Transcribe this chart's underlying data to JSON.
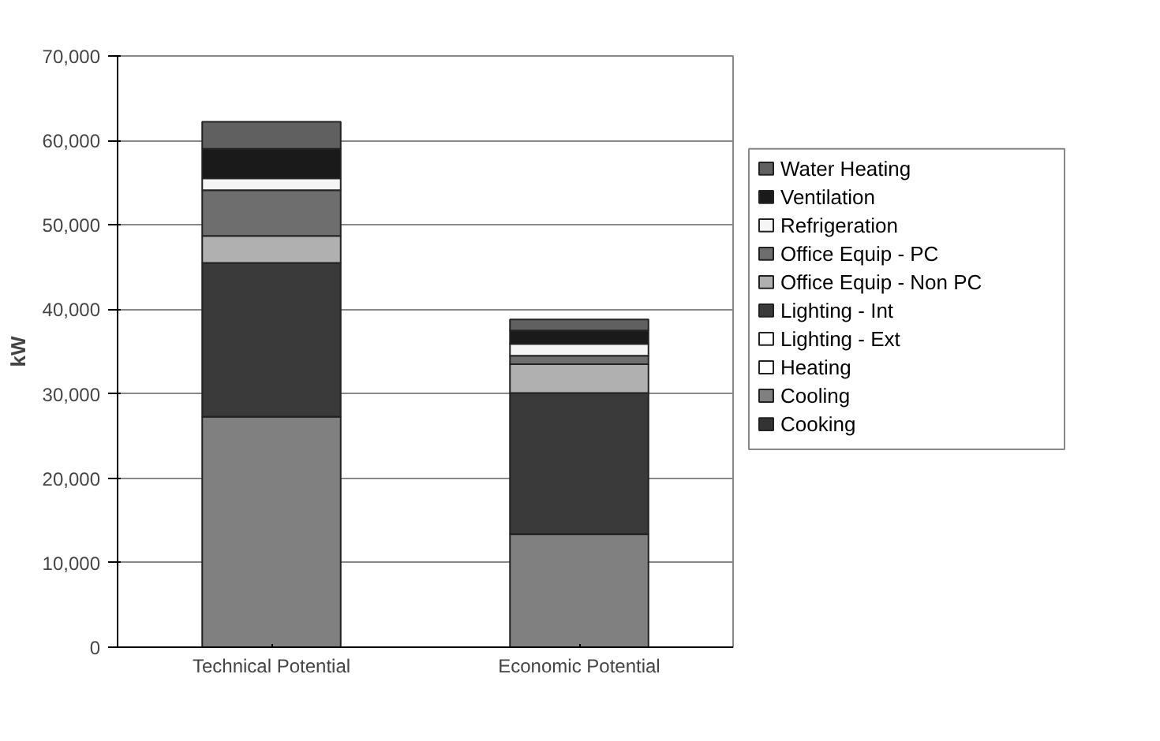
{
  "chart_data": {
    "type": "bar",
    "stacked": true,
    "ylabel": "kW",
    "categories": [
      "Technical Potential",
      "Economic Potential"
    ],
    "series": [
      {
        "name": "Cooking",
        "color": "#333333",
        "values": [
          0,
          0
        ]
      },
      {
        "name": "Cooling",
        "color": "#808080",
        "values": [
          27300,
          13400
        ]
      },
      {
        "name": "Heating",
        "color": "#ffffff",
        "values": [
          0,
          0
        ]
      },
      {
        "name": "Lighting - Ext",
        "color": "#ffffff",
        "values": [
          0,
          0
        ]
      },
      {
        "name": "Lighting - Int",
        "color": "#3a3a3a",
        "values": [
          18200,
          16700
        ]
      },
      {
        "name": "Office Equip - Non PC",
        "color": "#b0b0b0",
        "values": [
          3200,
          3400
        ]
      },
      {
        "name": "Office Equip - PC",
        "color": "#6e6e6e",
        "values": [
          5400,
          1000
        ]
      },
      {
        "name": "Refrigeration",
        "color": "#f5f5f5",
        "values": [
          1400,
          1400
        ]
      },
      {
        "name": "Ventilation",
        "color": "#1a1a1a",
        "values": [
          3500,
          1600
        ]
      },
      {
        "name": "Water Heating",
        "color": "#606060",
        "values": [
          3200,
          1300
        ]
      }
    ],
    "ylim": [
      0,
      70000
    ],
    "yticks": [
      {
        "value": 0,
        "label": "0"
      },
      {
        "value": 10000,
        "label": "10,000"
      },
      {
        "value": 20000,
        "label": "20,000"
      },
      {
        "value": 30000,
        "label": "30,000"
      },
      {
        "value": 40000,
        "label": "40,000"
      },
      {
        "value": 50000,
        "label": "50,000"
      },
      {
        "value": 60000,
        "label": "60,000"
      },
      {
        "value": 70000,
        "label": "70,000"
      }
    ],
    "grid": "y",
    "legend": "right"
  }
}
